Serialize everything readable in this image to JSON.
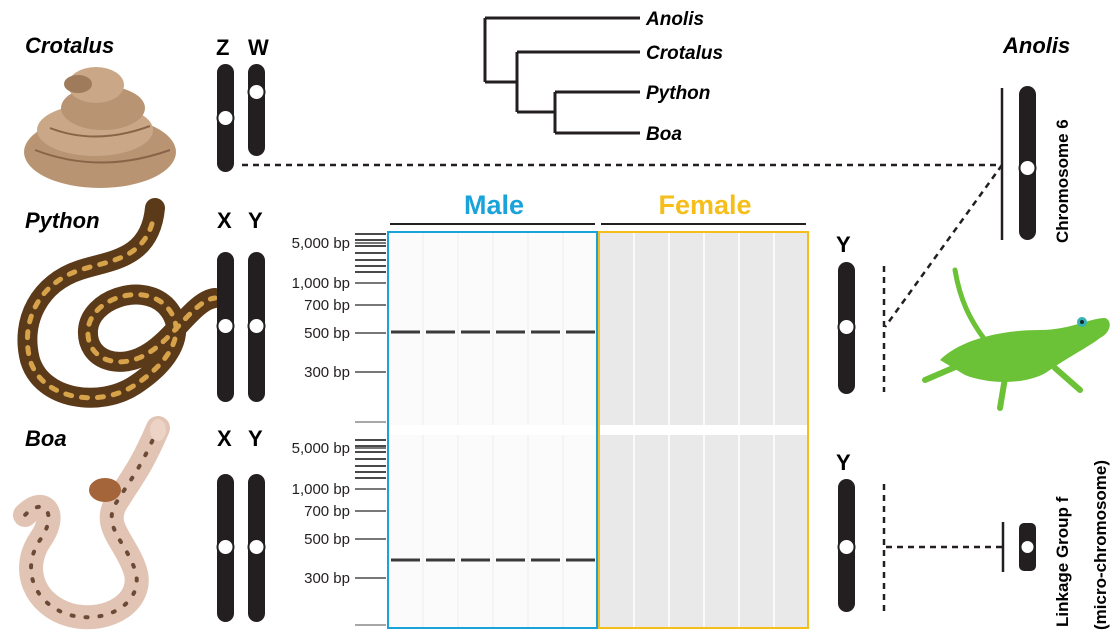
{
  "tree": {
    "taxa": [
      "Anolis",
      "Crotalus",
      "Python",
      "Boa"
    ]
  },
  "species": [
    {
      "name": "Crotalus",
      "chromosomes": [
        "Z",
        "W"
      ],
      "icon": "rattlesnake-icon",
      "color": "#b89473"
    },
    {
      "name": "Python",
      "chromosomes": [
        "X",
        "Y"
      ],
      "icon": "python-icon",
      "color": "#5b3a1a"
    },
    {
      "name": "Boa",
      "chromosomes": [
        "X",
        "Y"
      ],
      "icon": "boa-icon",
      "color": "#e2c4b4"
    }
  ],
  "gel": {
    "groups": [
      {
        "label": "Male",
        "color": "#1aa3d9"
      },
      {
        "label": "Female",
        "color": "#f6be1a"
      }
    ],
    "lanes_per_group": 6,
    "panels": [
      {
        "ladder_labels": [
          "5,000 bp",
          "1,000 bp",
          "700 bp",
          "500 bp",
          "300 bp"
        ],
        "male_band": "500 bp"
      },
      {
        "ladder_labels": [
          "5,000 bp",
          "1,000 bp",
          "700 bp",
          "500 bp",
          "300 bp"
        ],
        "male_band": "400 bp"
      }
    ]
  },
  "y_chromosome_label": "Y",
  "anolis": {
    "name": "Anolis",
    "chromosome_6_label": "Chromosome 6",
    "linkage_group_label": "Linkage Group f",
    "linkage_group_sub": "(micro-chromosome)",
    "icon": "anole-lizard-icon",
    "color": "#6cc236"
  }
}
